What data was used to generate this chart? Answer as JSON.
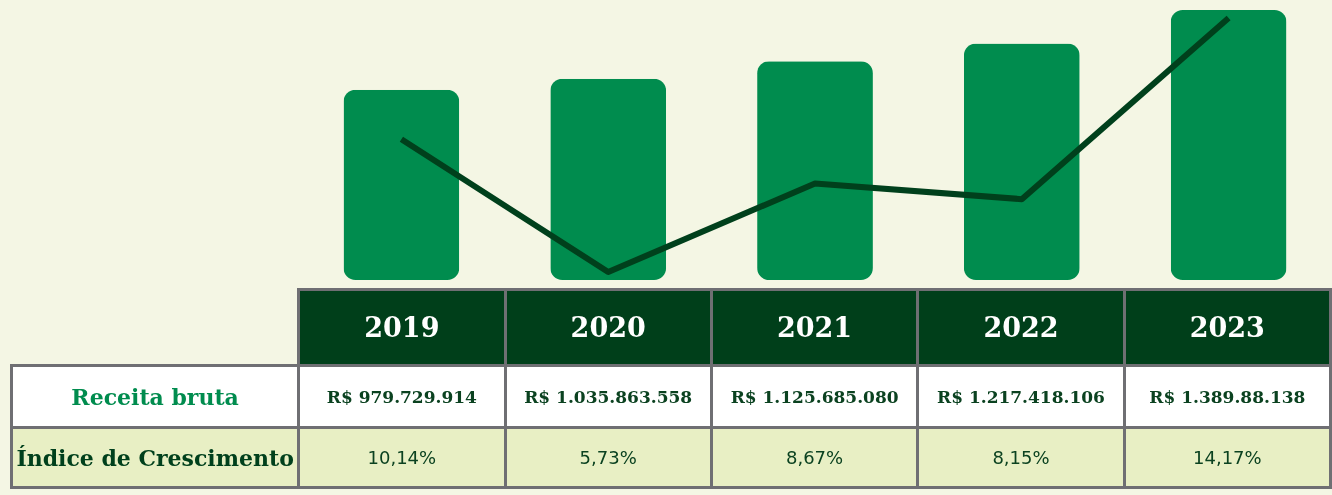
{
  "chart_data": {
    "type": "bar",
    "categories": [
      "2019",
      "2020",
      "2021",
      "2022",
      "2023"
    ],
    "tick_labels": "x",
    "series": [
      {
        "name": "Receita bruta",
        "color": "#008c4e",
        "values": [
          979729914,
          1035863558,
          1125685080,
          1217418106,
          1389880138
        ],
        "value_labels": [
          "R$ 979.729.914",
          "R$ 1.035.863.558",
          "R$ 1.125.685.080",
          "R$ 1.217.418.106",
          "R$ 1.389.88.138"
        ]
      },
      {
        "name": "Índice de Crescimento",
        "type": "line",
        "axis": "y2",
        "color": "#00401c",
        "values": [
          10.14,
          5.73,
          8.67,
          8.15,
          14.17
        ],
        "value_labels": [
          "10,14%",
          "5,73%",
          "8,67%",
          "8,15%",
          "14,17%"
        ]
      }
    ]
  }
}
